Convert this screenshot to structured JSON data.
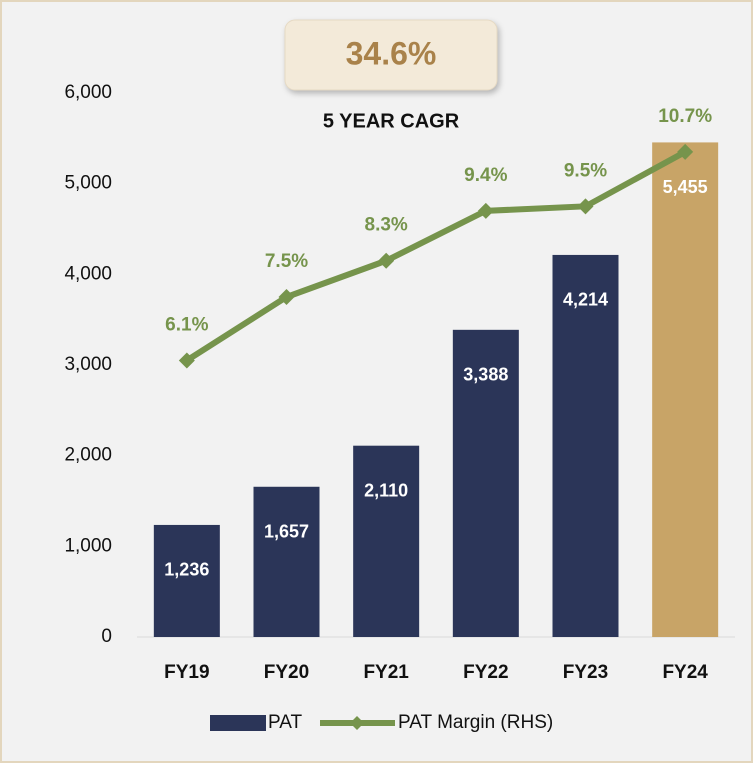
{
  "chart_data": {
    "type": "bar",
    "annotations": [
      "34.6%",
      "5 YEAR CAGR"
    ],
    "categories": [
      "FY19",
      "FY20",
      "FY21",
      "FY22",
      "FY23",
      "FY24"
    ],
    "series": [
      {
        "name": "PAT",
        "type": "bar",
        "color": "#2b3558",
        "colors": [
          "#2b3558",
          "#2b3558",
          "#2b3558",
          "#2b3558",
          "#2b3558",
          "#c8a467"
        ],
        "values": [
          1236,
          1657,
          2110,
          3388,
          4214,
          5455
        ],
        "value_labels": [
          "1,236",
          "1,657",
          "2,110",
          "3,388",
          "4,214",
          "5,455"
        ]
      },
      {
        "name": "PAT Margin (RHS)",
        "type": "line",
        "axis": "y2",
        "color": "#76944c",
        "values": [
          6.1,
          7.5,
          8.3,
          9.4,
          9.5,
          10.7
        ],
        "value_labels": [
          "6.1%",
          "7.5%",
          "8.3%",
          "9.4%",
          "9.5%",
          "10.7%"
        ]
      }
    ],
    "ylim": [
      0,
      6000
    ],
    "yticks": [
      0,
      {
        "value": 1000,
        "label": "1,000"
      },
      {
        "value": 2000,
        "label": "2,000"
      },
      {
        "value": 3000,
        "label": "3,000"
      },
      {
        "value": 4000,
        "label": "4,000"
      },
      {
        "value": 5000,
        "label": "5,000"
      },
      {
        "value": 6000,
        "label": "6,000"
      }
    ],
    "y2lim": [
      0,
      12
    ],
    "grid": false,
    "legend": "bottom"
  }
}
